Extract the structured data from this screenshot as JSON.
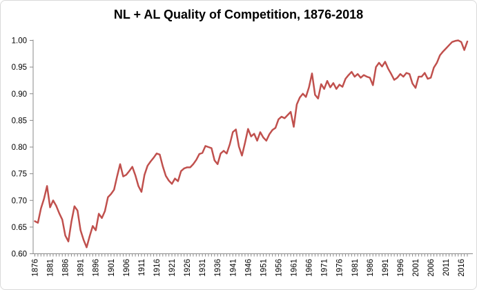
{
  "chart": {
    "title": "NL + AL Quality of Competition, 1876-2018"
  },
  "chart_data": {
    "type": "line",
    "title": "NL + AL Quality of Competition, 1876-2018",
    "series_name": "NL + AL Quality of Competition",
    "xlabel": "",
    "ylabel": "",
    "x_start_year": 1876,
    "x_end_year": 2018,
    "ylim": [
      0.6,
      1.0
    ],
    "y_tick_step": 0.05,
    "grid": false,
    "legend_position": "none",
    "line_color": "#C0504D",
    "axis_color": "#898989",
    "text_color": "#000000",
    "background_color": "#FFFFFF",
    "y_tick_labels": [
      "0.60",
      "0.65",
      "0.70",
      "0.75",
      "0.80",
      "0.85",
      "0.90",
      "0.95",
      "1.00"
    ],
    "x_tick_labels": [
      "1876",
      "1881",
      "1886",
      "1891",
      "1896",
      "1901",
      "1906",
      "1911",
      "1916",
      "1921",
      "1926",
      "1931",
      "1936",
      "1941",
      "1946",
      "1951",
      "1956",
      "1961",
      "1966",
      "1971",
      "1976",
      "1981",
      "1986",
      "1991",
      "1996",
      "2001",
      "2006",
      "2011",
      "2016"
    ],
    "values": [
      0.661,
      0.658,
      0.685,
      0.703,
      0.727,
      0.687,
      0.7,
      0.69,
      0.676,
      0.664,
      0.634,
      0.623,
      0.66,
      0.689,
      0.681,
      0.644,
      0.626,
      0.612,
      0.633,
      0.652,
      0.644,
      0.675,
      0.667,
      0.68,
      0.706,
      0.712,
      0.72,
      0.745,
      0.768,
      0.745,
      0.748,
      0.755,
      0.763,
      0.747,
      0.727,
      0.716,
      0.748,
      0.765,
      0.773,
      0.78,
      0.788,
      0.786,
      0.764,
      0.746,
      0.737,
      0.731,
      0.741,
      0.736,
      0.755,
      0.76,
      0.762,
      0.762,
      0.768,
      0.776,
      0.787,
      0.789,
      0.802,
      0.8,
      0.798,
      0.775,
      0.768,
      0.788,
      0.793,
      0.788,
      0.805,
      0.828,
      0.833,
      0.801,
      0.784,
      0.808,
      0.834,
      0.82,
      0.825,
      0.812,
      0.828,
      0.818,
      0.812,
      0.824,
      0.832,
      0.836,
      0.852,
      0.857,
      0.854,
      0.86,
      0.866,
      0.838,
      0.88,
      0.893,
      0.9,
      0.894,
      0.912,
      0.938,
      0.898,
      0.891,
      0.918,
      0.909,
      0.924,
      0.912,
      0.92,
      0.909,
      0.917,
      0.913,
      0.928,
      0.935,
      0.941,
      0.932,
      0.937,
      0.93,
      0.935,
      0.932,
      0.93,
      0.916,
      0.95,
      0.958,
      0.951,
      0.96,
      0.947,
      0.937,
      0.926,
      0.93,
      0.937,
      0.932,
      0.939,
      0.937,
      0.919,
      0.911,
      0.932,
      0.932,
      0.939,
      0.928,
      0.93,
      0.949,
      0.958,
      0.972,
      0.979,
      0.985,
      0.991,
      0.997,
      0.999,
      1.0,
      0.997,
      0.982,
      0.998
    ]
  }
}
